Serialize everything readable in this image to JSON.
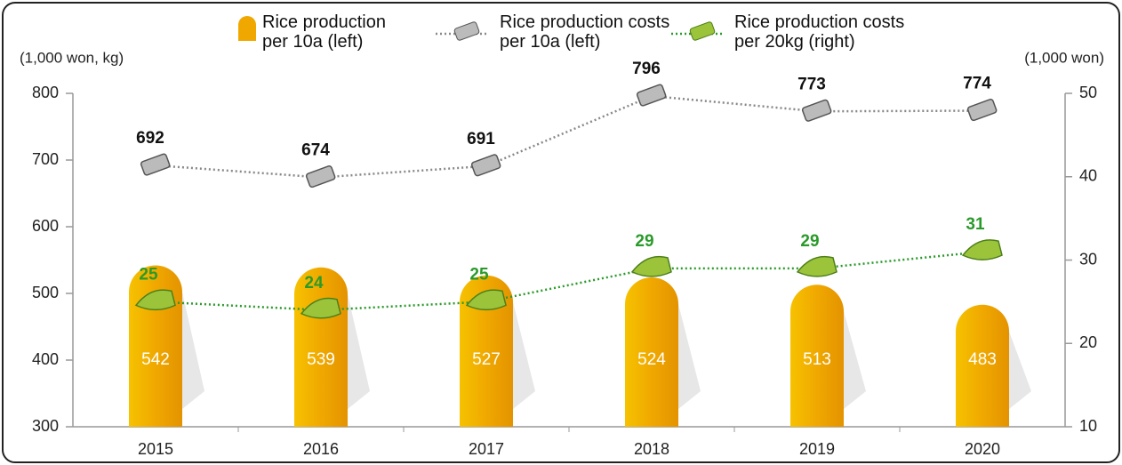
{
  "chart_data": {
    "type": "combo",
    "y_label": "(1,000 won, kg)",
    "y2_label": "(1,000 won)",
    "categories": [
      "2015",
      "2016",
      "2017",
      "2018",
      "2019",
      "2020"
    ],
    "series": [
      {
        "name": "Rice production per 10a (left)",
        "type": "bar",
        "color": "#f0a800",
        "values": [
          542,
          539,
          527,
          524,
          513,
          483
        ]
      },
      {
        "name": "Rice production costs per 10a (left)",
        "type": "line",
        "color": "#888888",
        "values": [
          692,
          674,
          691,
          796,
          773,
          774
        ]
      },
      {
        "name": "Rice production costs per 20kg (right)",
        "type": "line",
        "axis": "y2",
        "color": "#2a9a2a",
        "values": [
          25,
          24,
          25,
          29,
          29,
          31
        ]
      }
    ],
    "ylim": [
      300,
      800
    ],
    "yticks": [
      300,
      400,
      500,
      600,
      700,
      800
    ],
    "y2lim": [
      10,
      50
    ],
    "y2ticks": [
      10,
      20,
      30,
      40,
      50
    ]
  }
}
